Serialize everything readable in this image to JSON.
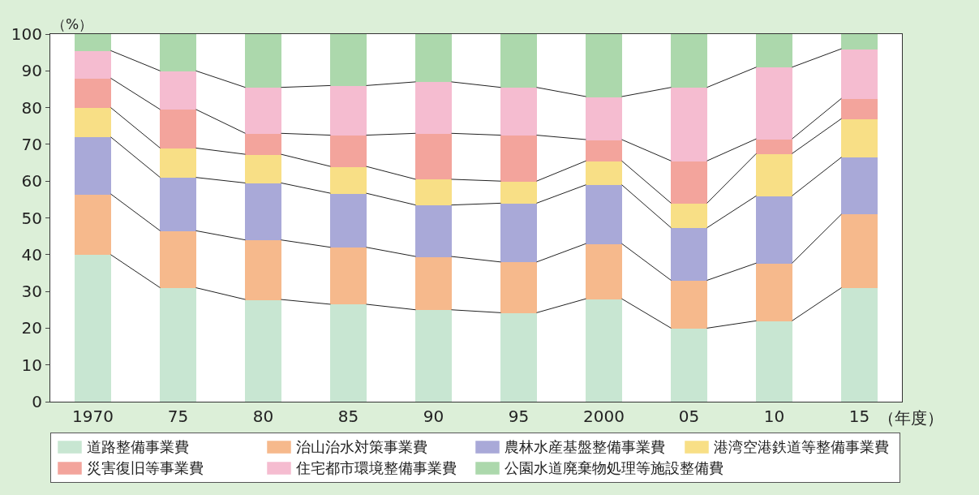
{
  "chart_data": {
    "type": "bar",
    "stacked": true,
    "ylabel": "（%）",
    "xlabel": "（年度）",
    "categories": [
      "1970",
      "75",
      "80",
      "85",
      "90",
      "95",
      "2000",
      "05",
      "10",
      "15"
    ],
    "ylim": [
      0,
      100
    ],
    "yticks": [
      0,
      10,
      20,
      30,
      40,
      50,
      60,
      70,
      80,
      90,
      100
    ],
    "grid": false,
    "legend": "bottom",
    "series": [
      {
        "name": "道路整備事業費",
        "color": "#c8e6d2",
        "values": [
          40,
          31,
          27.8,
          26.5,
          25,
          24.2,
          28,
          20,
          22,
          31
        ]
      },
      {
        "name": "治山治水対策事業費",
        "color": "#f6b98c",
        "values": [
          16.5,
          15.5,
          16.2,
          15.5,
          14.5,
          13.8,
          15,
          13,
          15.7,
          20
        ]
      },
      {
        "name": "農林水産基盤整備事業費",
        "color": "#a9a9d8",
        "values": [
          15.5,
          14.5,
          15.5,
          14.7,
          14,
          16,
          16,
          14.3,
          18.3,
          15.5
        ]
      },
      {
        "name": "港湾空港鉄道等整備事業費",
        "color": "#f8df86",
        "values": [
          8,
          8,
          7.8,
          7.3,
          7,
          6,
          6.5,
          6.7,
          11.5,
          10.5
        ]
      },
      {
        "name": "災害復旧等事業費",
        "color": "#f3a49c",
        "values": [
          8,
          10.5,
          5.7,
          8.5,
          12.5,
          12.5,
          5.8,
          11.5,
          4,
          5.5
        ]
      },
      {
        "name": "住宅都市環境整備事業費",
        "color": "#f5bcd0",
        "values": [
          7.5,
          10.5,
          12.5,
          13.5,
          14,
          13,
          11.7,
          20,
          19.5,
          13.5
        ]
      },
      {
        "name": "公園水道廃棄物処理等施設整備費",
        "color": "#acd8ac",
        "values": [
          4.5,
          10,
          14.5,
          14,
          13,
          14.5,
          17,
          14.5,
          9,
          4
        ]
      }
    ]
  }
}
